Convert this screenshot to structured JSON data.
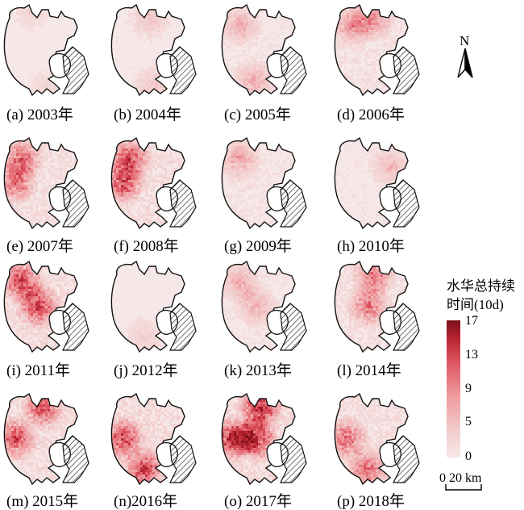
{
  "panels": [
    {
      "label": "(a) 2003年",
      "intensity": 0.15,
      "hotspots": [
        "north-tip",
        "south-east"
      ]
    },
    {
      "label": "(b) 2004年",
      "intensity": 0.25,
      "hotspots": [
        "north",
        "south-east"
      ]
    },
    {
      "label": "(c) 2005年",
      "intensity": 0.35,
      "hotspots": [
        "north-west",
        "south"
      ]
    },
    {
      "label": "(d) 2006年",
      "intensity": 0.45,
      "hotspots": [
        "north",
        "north-west"
      ]
    },
    {
      "label": "(e) 2007年",
      "intensity": 0.6,
      "hotspots": [
        "west",
        "north-west"
      ]
    },
    {
      "label": "(f) 2008年",
      "intensity": 0.7,
      "hotspots": [
        "west",
        "north-west"
      ]
    },
    {
      "label": "(g) 2009年",
      "intensity": 0.4,
      "hotspots": [
        "north-west"
      ]
    },
    {
      "label": "(h) 2010年",
      "intensity": 0.3,
      "hotspots": [
        "east"
      ]
    },
    {
      "label": "(i) 2011年",
      "intensity": 0.75,
      "hotspots": [
        "north-west",
        "center"
      ]
    },
    {
      "label": "(j) 2012年",
      "intensity": 0.2,
      "hotspots": [
        "south"
      ]
    },
    {
      "label": "(k) 2013年",
      "intensity": 0.35,
      "hotspots": [
        "north-west",
        "center"
      ]
    },
    {
      "label": "(l) 2014年",
      "intensity": 0.55,
      "hotspots": [
        "north",
        "center"
      ]
    },
    {
      "label": "(m) 2015年",
      "intensity": 0.7,
      "hotspots": [
        "west",
        "north"
      ]
    },
    {
      "label": "(n)2016年",
      "intensity": 0.75,
      "hotspots": [
        "west",
        "south"
      ]
    },
    {
      "label": "(o) 2017年",
      "intensity": 0.85,
      "hotspots": [
        "north",
        "west",
        "center"
      ]
    },
    {
      "label": "(p) 2018年",
      "intensity": 0.6,
      "hotspots": [
        "west",
        "south"
      ]
    }
  ],
  "north_arrow": {
    "label": "N"
  },
  "legend": {
    "title_line1": "水华总持续",
    "title_line2": "时间(10d)",
    "ticks": [
      "17",
      "13",
      "9",
      "5",
      "0"
    ],
    "color_low": "#f6e8e8",
    "color_high": "#7a0f17"
  },
  "scale_bar": {
    "label": "0    20 km"
  }
}
